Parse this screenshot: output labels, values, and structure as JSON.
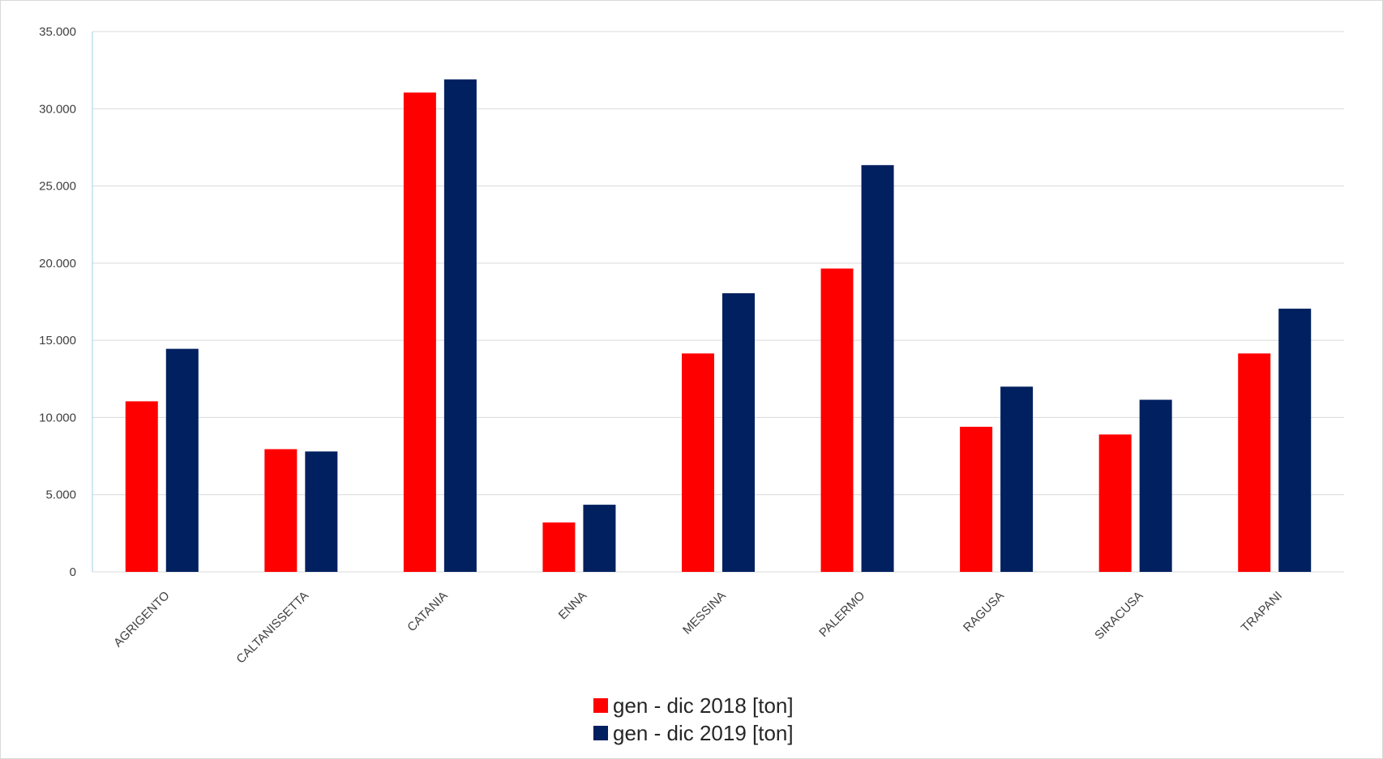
{
  "chart_data": {
    "type": "bar",
    "title": "",
    "xlabel": "",
    "ylabel": "",
    "categories": [
      "AGRIGENTO",
      "CALTANISSETTA",
      "CATANIA",
      "ENNA",
      "MESSINA",
      "PALERMO",
      "RAGUSA",
      "SIRACUSA",
      "TRAPANI"
    ],
    "series": [
      {
        "name": "gen - dic 2018 [ton]",
        "color": "#ff0000",
        "values": [
          11050,
          7950,
          31050,
          3200,
          14150,
          19650,
          9400,
          8900,
          14150
        ]
      },
      {
        "name": "gen - dic 2019 [ton]",
        "color": "#002060",
        "values": [
          14450,
          7800,
          31900,
          4350,
          18050,
          26350,
          12000,
          11150,
          17050
        ]
      }
    ],
    "ylim": [
      0,
      35000
    ],
    "yticks": [
      0,
      5000,
      10000,
      15000,
      20000,
      25000,
      30000,
      35000
    ],
    "ytick_labels": [
      "0",
      "5.000",
      "10.000",
      "15.000",
      "20.000",
      "25.000",
      "30.000",
      "35.000"
    ],
    "grid": true,
    "legend_position": "bottom"
  }
}
